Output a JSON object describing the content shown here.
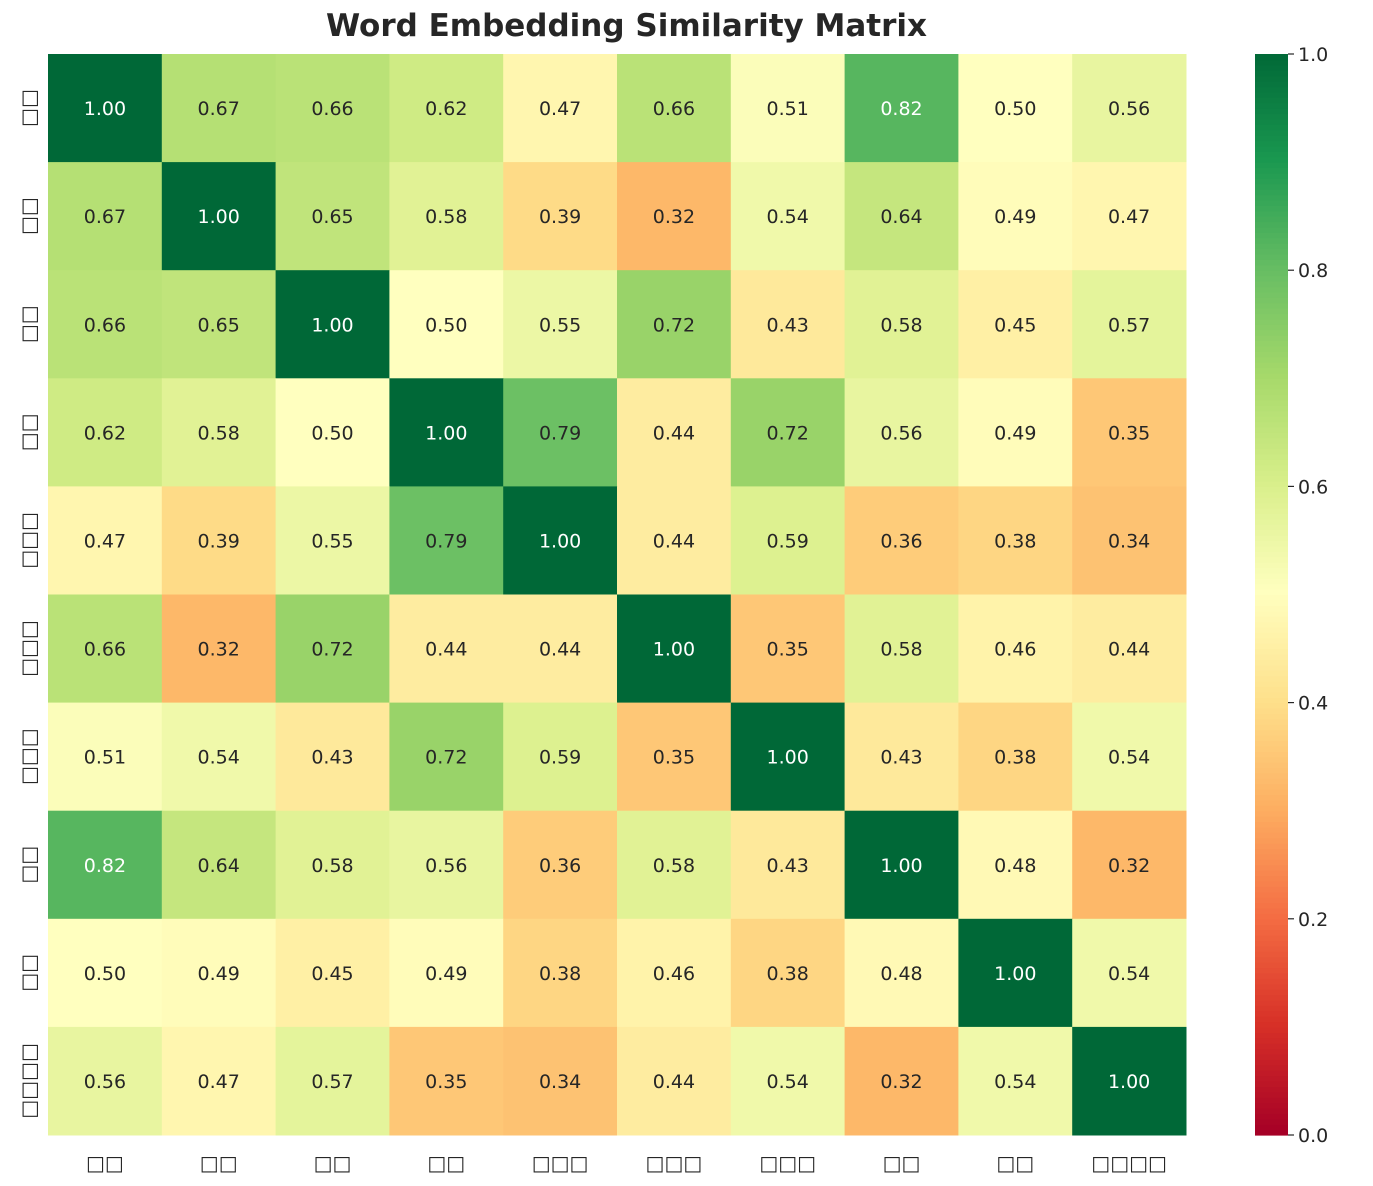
{
  "chart_data": {
    "type": "heatmap",
    "title": "Word Embedding Similarity Matrix",
    "x_labels": [
      "□□",
      "□□",
      "□□",
      "□□",
      "□□□",
      "□□□",
      "□□□",
      "□□",
      "□□",
      "□□□□"
    ],
    "y_labels": [
      "□□",
      "□□",
      "□□",
      "□□",
      "□□□",
      "□□□",
      "□□□",
      "□□",
      "□□",
      "□□□□"
    ],
    "values": [
      [
        1.0,
        0.67,
        0.66,
        0.62,
        0.47,
        0.66,
        0.51,
        0.82,
        0.5,
        0.56
      ],
      [
        0.67,
        1.0,
        0.65,
        0.58,
        0.39,
        0.32,
        0.54,
        0.64,
        0.49,
        0.47
      ],
      [
        0.66,
        0.65,
        1.0,
        0.5,
        0.55,
        0.72,
        0.43,
        0.58,
        0.45,
        0.57
      ],
      [
        0.62,
        0.58,
        0.5,
        1.0,
        0.79,
        0.44,
        0.72,
        0.56,
        0.49,
        0.35
      ],
      [
        0.47,
        0.39,
        0.55,
        0.79,
        1.0,
        0.44,
        0.59,
        0.36,
        0.38,
        0.34
      ],
      [
        0.66,
        0.32,
        0.72,
        0.44,
        0.44,
        1.0,
        0.35,
        0.58,
        0.46,
        0.44
      ],
      [
        0.51,
        0.54,
        0.43,
        0.72,
        0.59,
        0.35,
        1.0,
        0.43,
        0.38,
        0.54
      ],
      [
        0.82,
        0.64,
        0.58,
        0.56,
        0.36,
        0.58,
        0.43,
        1.0,
        0.48,
        0.32
      ],
      [
        0.5,
        0.49,
        0.45,
        0.49,
        0.38,
        0.46,
        0.38,
        0.48,
        1.0,
        0.54
      ],
      [
        0.56,
        0.47,
        0.57,
        0.35,
        0.34,
        0.44,
        0.54,
        0.32,
        0.54,
        1.0
      ]
    ],
    "colormap": "RdYlGn",
    "vmin": 0,
    "vmax": 1,
    "colorbar_ticks": [
      "0.0",
      "0.2",
      "0.4",
      "0.6",
      "0.8",
      "1.0"
    ],
    "annotation_format": "2 decimals"
  }
}
